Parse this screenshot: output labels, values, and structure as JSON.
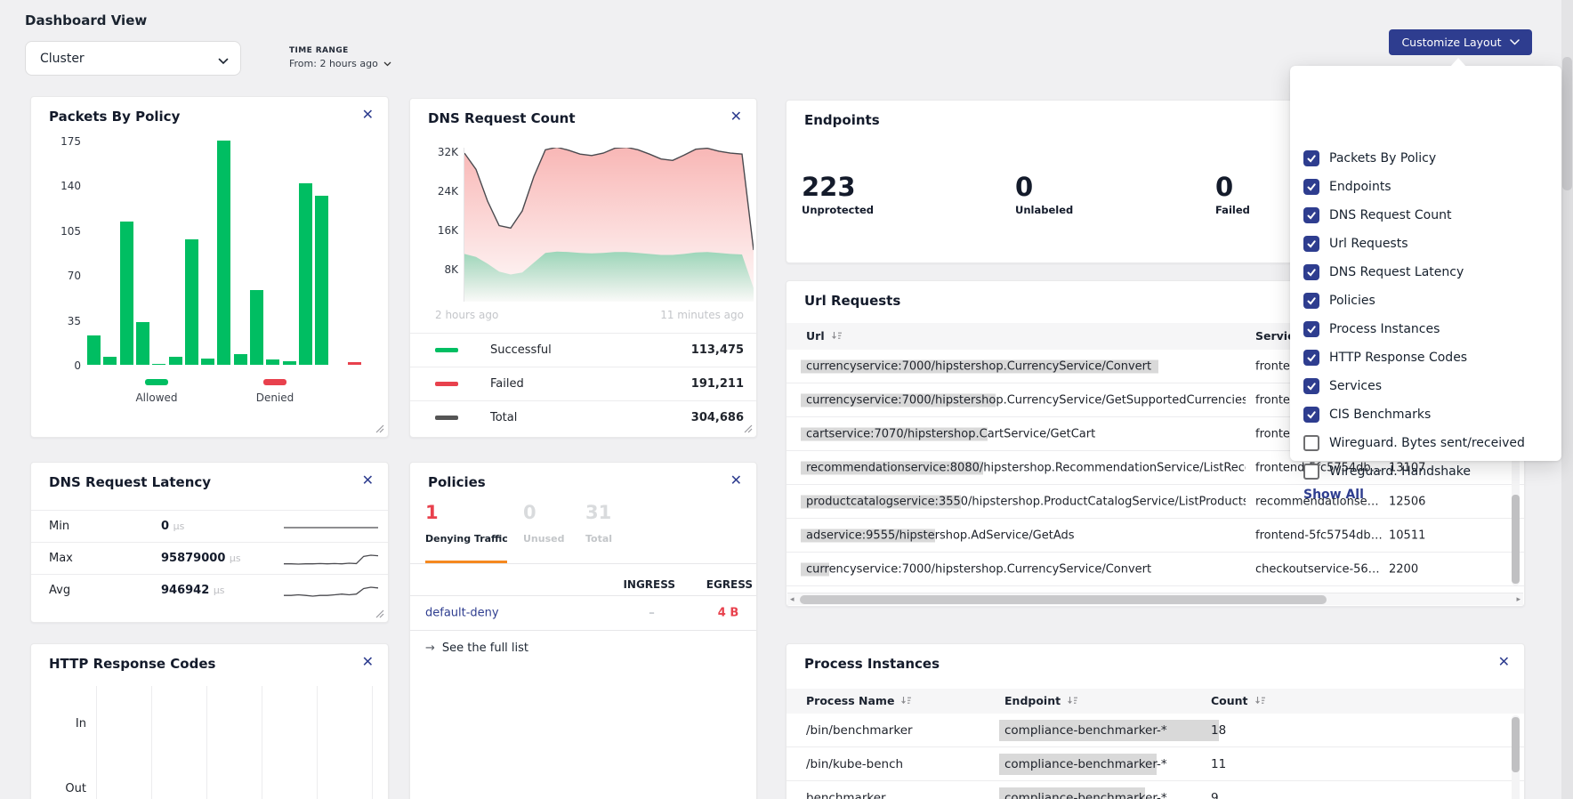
{
  "colors": {
    "accent": "#2e3d8f",
    "green": "#00be62",
    "red": "#e8414d",
    "orange": "#f5891f",
    "total_gray": "#555555"
  },
  "header": {
    "title": "Dashboard View",
    "view_value": "Cluster",
    "time_range_label": "TIME RANGE",
    "time_range_from": "From: 2 hours ago",
    "customize_label": "Customize Layout"
  },
  "customize_menu": {
    "items": [
      {
        "label": "Packets By Policy",
        "checked": true
      },
      {
        "label": "Endpoints",
        "checked": true
      },
      {
        "label": "DNS Request Count",
        "checked": true
      },
      {
        "label": "Url Requests",
        "checked": true
      },
      {
        "label": "DNS Request Latency",
        "checked": true
      },
      {
        "label": "Policies",
        "checked": true
      },
      {
        "label": "Process Instances",
        "checked": true
      },
      {
        "label": "HTTP Response Codes",
        "checked": true
      },
      {
        "label": "Services",
        "checked": true
      },
      {
        "label": "CIS Benchmarks",
        "checked": true
      },
      {
        "label": "Wireguard. Bytes sent/received",
        "checked": false
      },
      {
        "label": "Wireguard. Handshake",
        "checked": false
      }
    ],
    "show_all": "Show All"
  },
  "panels": {
    "packets": {
      "title": "Packets By Policy"
    },
    "dns_count": {
      "title": "DNS Request Count",
      "x_left": "2 hours ago",
      "x_right": "11 minutes ago",
      "legend": [
        {
          "label": "Successful",
          "value": "113,475",
          "color": "#00be62"
        },
        {
          "label": "Failed",
          "value": "191,211",
          "color": "#e8414d"
        },
        {
          "label": "Total",
          "value": "304,686",
          "color": "#555555"
        }
      ]
    },
    "endpoints": {
      "title": "Endpoints",
      "stats": [
        {
          "value": "223",
          "label": "Unprotected"
        },
        {
          "value": "0",
          "label": "Unlabeled"
        },
        {
          "value": "0",
          "label": "Failed"
        }
      ]
    },
    "url": {
      "title": "Url Requests",
      "col_url": "Url",
      "col_service": "Service",
      "rows": [
        {
          "hl": "currencyservice:7000/hipstershop.CurrencyService/Convert",
          "rest": "",
          "full_pill": true,
          "service": "fronte",
          "count": ""
        },
        {
          "hl": "currencyservice:7000/hipstersho",
          "rest": "p.CurrencyService/GetSupportedCurrencies",
          "full_pill": false,
          "service": "fronte",
          "count": ""
        },
        {
          "hl": "cartservice:7070/hipstershop.C",
          "rest": "artService/GetCart",
          "full_pill": false,
          "service": "fronte",
          "count": ""
        },
        {
          "hl": "recommendationservice:8080/",
          "rest": "hipstershop.RecommendationService/ListRecomm",
          "full_pill": false,
          "service": "frontend-5fc5754db…",
          "count": "13107"
        },
        {
          "hl": "productcatalogservice:355",
          "rest": "0/hipstershop.ProductCatalogService/ListProducts",
          "full_pill": false,
          "service": "recommendationse…",
          "count": "12506"
        },
        {
          "hl": "adservice:9555/hipste",
          "rest": "rshop.AdService/GetAds",
          "full_pill": false,
          "service": "frontend-5fc5754db…",
          "count": "10511"
        },
        {
          "hl": "curr",
          "rest": "encyservice:7000/hipstershop.CurrencyService/Convert",
          "full_pill": false,
          "service": "checkoutservice-56…",
          "count": "2200"
        }
      ]
    },
    "latency": {
      "title": "DNS Request Latency",
      "unit": "μs",
      "rows": [
        {
          "label": "Min",
          "value": "0"
        },
        {
          "label": "Max",
          "value": "95879000"
        },
        {
          "label": "Avg",
          "value": "946942"
        }
      ]
    },
    "policies": {
      "title": "Policies",
      "stats": [
        {
          "value": "1",
          "label": "Denying Traffic",
          "active": true
        },
        {
          "value": "0",
          "label": "Unused",
          "active": false
        },
        {
          "value": "31",
          "label": "Total",
          "active": false
        }
      ],
      "col_ingress": "INGRESS",
      "col_egress": "EGRESS",
      "rows": [
        {
          "name": "default-deny",
          "ingress": "–",
          "egress": "4 B"
        }
      ],
      "footer": "See the full list"
    },
    "http": {
      "title": "HTTP Response Codes",
      "row_labels": [
        "In",
        "Out"
      ]
    },
    "process": {
      "title": "Process Instances",
      "col_name": "Process Name",
      "col_endpoint": "Endpoint",
      "col_count": "Count",
      "rows": [
        {
          "name": "/bin/benchmarker",
          "hl": "compliance-benchmarker-*",
          "rest": "",
          "pill": "wide",
          "count": "18"
        },
        {
          "name": "/bin/kube-bench",
          "hl": "compliance-benchmarker",
          "rest": "-*",
          "pill": "",
          "count": "11"
        },
        {
          "name": "benchmarker",
          "hl": "compliance-benchmark",
          "rest": "er-*",
          "pill": "",
          "count": "9"
        }
      ]
    }
  },
  "chart_data": [
    {
      "id": "packets_by_policy",
      "type": "bar",
      "title": "Packets By Policy",
      "ylim": [
        0,
        175
      ],
      "yticks": [
        0,
        35,
        70,
        105,
        140,
        175
      ],
      "legend_position": "bottom",
      "series": [
        {
          "name": "Allowed",
          "color": "#00be62",
          "values": [
            23,
            6,
            112,
            33,
            1,
            6,
            98,
            5,
            175,
            8,
            58,
            4,
            3,
            142,
            132
          ]
        },
        {
          "name": "Denied",
          "color": "#e8414d",
          "values": [
            2
          ]
        }
      ]
    },
    {
      "id": "dns_request_count",
      "type": "area",
      "title": "DNS Request Count",
      "x_labels": [
        "2 hours ago",
        "11 minutes ago"
      ],
      "yticks_k": [
        8,
        16,
        24,
        32
      ],
      "series": [
        {
          "name": "Failed (top boundary, stacked)",
          "color": "#e8414d",
          "values_k": [
            31.8,
            28.5,
            22.0,
            17.0,
            16.5,
            20.0,
            27.0,
            32.5,
            33.0,
            32.4,
            31.6,
            31.3,
            31.8,
            32.8,
            33.0,
            32.5,
            31.6,
            30.6,
            30.3,
            31.4,
            32.6,
            32.8,
            32.2,
            31.8,
            31.6,
            12.0
          ]
        },
        {
          "name": "Successful",
          "color": "#00be62",
          "values_k": [
            11.2,
            10.6,
            9.2,
            7.6,
            7.0,
            7.4,
            9.4,
            11.4,
            11.7,
            11.6,
            11.4,
            11.3,
            11.4,
            11.6,
            11.6,
            11.4,
            11.2,
            11.0,
            11.0,
            11.2,
            11.5,
            11.6,
            11.4,
            11.2,
            11.1,
            4.2
          ]
        }
      ],
      "totals": {
        "Successful": 113475,
        "Failed": 191211,
        "Total": 304686
      }
    },
    {
      "id": "dns_request_latency",
      "type": "line",
      "rows": [
        {
          "label": "Min",
          "value_us": 0,
          "spark": [
            0,
            0,
            0,
            0,
            0,
            0,
            0,
            0,
            0,
            0,
            0,
            0,
            0,
            0
          ]
        },
        {
          "label": "Max",
          "value_us": 95879000,
          "spark": [
            1,
            1,
            0.9,
            1,
            1,
            1.1,
            1,
            1.1,
            1,
            1.2,
            1.1,
            3.6,
            4,
            3.8
          ]
        },
        {
          "label": "Avg",
          "value_us": 946942,
          "spark": [
            1,
            1,
            1.05,
            1,
            0.95,
            1,
            1,
            1.05,
            1.1,
            1.05,
            1.1,
            1.5,
            1.6,
            1.55
          ]
        }
      ]
    },
    {
      "id": "http_response_codes",
      "type": "line",
      "rows": [
        "In",
        "Out"
      ],
      "data": "empty",
      "gridlines": 6
    }
  ]
}
